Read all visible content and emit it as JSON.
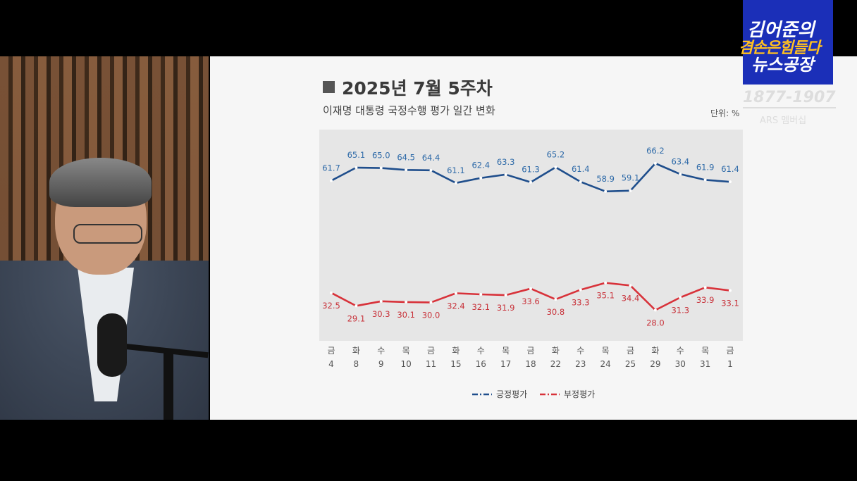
{
  "chart_data": {
    "type": "line",
    "title": "2025년 7월 5주차",
    "subtitle": "이재명 대통령 국정수행 평가 일간 변화",
    "unit_label": "단위: %",
    "weekdays": [
      "금",
      "화",
      "수",
      "목",
      "금",
      "화",
      "수",
      "목",
      "금",
      "화",
      "수",
      "목",
      "금",
      "화",
      "수",
      "목",
      "금"
    ],
    "days": [
      "4",
      "8",
      "9",
      "10",
      "11",
      "15",
      "16",
      "17",
      "18",
      "22",
      "23",
      "24",
      "25",
      "29",
      "30",
      "31",
      "1"
    ],
    "ylim": [
      20,
      75
    ],
    "grid": false,
    "legend_position": "bottom",
    "series": [
      {
        "name": "긍정평가",
        "color": "#1f4e8c",
        "label_color": "#2e6aa8",
        "values": [
          61.7,
          65.1,
          65.0,
          64.5,
          64.4,
          61.1,
          62.4,
          63.3,
          61.3,
          65.2,
          61.4,
          58.9,
          59.1,
          66.2,
          63.4,
          61.9,
          61.4
        ],
        "labels": [
          "61.7",
          "65.1",
          "65.0",
          "64.5",
          "64.4",
          "61.1",
          "62.4",
          "63.3",
          "61.3",
          "65.2",
          "61.4",
          "58.9",
          "59.1",
          "66.2",
          "63.4",
          "61.9",
          "61.4"
        ]
      },
      {
        "name": "부정평가",
        "color": "#d8323a",
        "label_color": "#c8323a",
        "values": [
          32.5,
          29.1,
          30.3,
          30.1,
          30.0,
          32.4,
          32.1,
          31.9,
          33.6,
          30.8,
          33.3,
          35.1,
          34.4,
          28.0,
          31.3,
          33.9,
          33.1
        ],
        "labels": [
          "32.5",
          "29.1",
          "30.3",
          "30.1",
          "30.0",
          "32.4",
          "32.1",
          "31.9",
          "33.6",
          "30.8",
          "33.3",
          "35.1",
          "34.4",
          "28.0",
          "31.3",
          "33.9",
          "33.1"
        ]
      }
    ]
  },
  "logo": {
    "line1": "김어준의",
    "line2": "겸손은힘들다",
    "line3": "뉴스공장"
  },
  "ars": {
    "number": "1877-1907",
    "label": "ARS 멤버십"
  }
}
